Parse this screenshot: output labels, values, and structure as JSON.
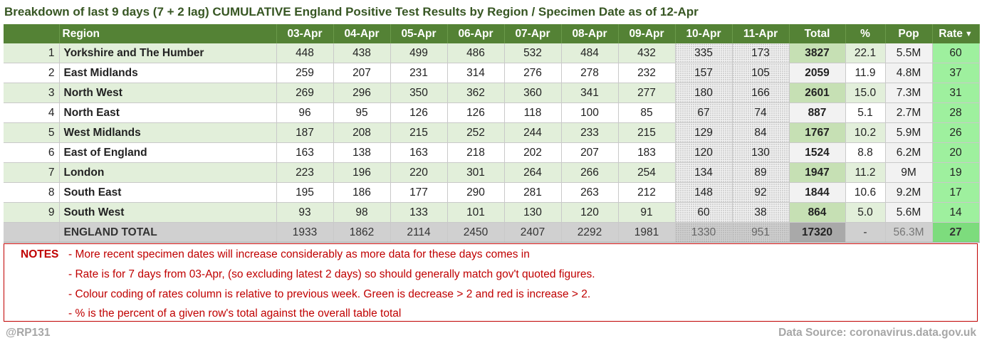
{
  "title": "Breakdown of last 9 days (7 + 2 lag) CUMULATIVE England Positive Test Results by Region / Specimen Date as of 12-Apr",
  "header": {
    "region": "Region",
    "days": [
      "03-Apr",
      "04-Apr",
      "05-Apr",
      "06-Apr",
      "07-Apr",
      "08-Apr",
      "09-Apr"
    ],
    "lag_days": [
      "10-Apr",
      "11-Apr"
    ],
    "total": "Total",
    "pct": "%",
    "pop": "Pop",
    "rate": "Rate",
    "rate_sort_icon": "▼"
  },
  "rows": [
    {
      "idx": "1",
      "region": "Yorkshire and The Humber",
      "days": [
        "448",
        "438",
        "499",
        "486",
        "532",
        "484",
        "432"
      ],
      "lag": [
        "335",
        "173"
      ],
      "total": "3827",
      "pct": "22.1",
      "pop": "5.5M",
      "rate": "60"
    },
    {
      "idx": "2",
      "region": "East Midlands",
      "days": [
        "259",
        "207",
        "231",
        "314",
        "276",
        "278",
        "232"
      ],
      "lag": [
        "157",
        "105"
      ],
      "total": "2059",
      "pct": "11.9",
      "pop": "4.8M",
      "rate": "37"
    },
    {
      "idx": "3",
      "region": "North West",
      "days": [
        "269",
        "296",
        "350",
        "362",
        "360",
        "341",
        "277"
      ],
      "lag": [
        "180",
        "166"
      ],
      "total": "2601",
      "pct": "15.0",
      "pop": "7.3M",
      "rate": "31"
    },
    {
      "idx": "4",
      "region": "North East",
      "days": [
        "96",
        "95",
        "126",
        "126",
        "118",
        "100",
        "85"
      ],
      "lag": [
        "67",
        "74"
      ],
      "total": "887",
      "pct": "5.1",
      "pop": "2.7M",
      "rate": "28"
    },
    {
      "idx": "5",
      "region": "West Midlands",
      "days": [
        "187",
        "208",
        "215",
        "252",
        "244",
        "233",
        "215"
      ],
      "lag": [
        "129",
        "84"
      ],
      "total": "1767",
      "pct": "10.2",
      "pop": "5.9M",
      "rate": "26"
    },
    {
      "idx": "6",
      "region": "East of England",
      "days": [
        "163",
        "138",
        "163",
        "218",
        "202",
        "207",
        "183"
      ],
      "lag": [
        "120",
        "130"
      ],
      "total": "1524",
      "pct": "8.8",
      "pop": "6.2M",
      "rate": "20"
    },
    {
      "idx": "7",
      "region": "London",
      "days": [
        "223",
        "196",
        "220",
        "301",
        "264",
        "266",
        "254"
      ],
      "lag": [
        "134",
        "89"
      ],
      "total": "1947",
      "pct": "11.2",
      "pop": "9M",
      "rate": "19"
    },
    {
      "idx": "8",
      "region": "South East",
      "days": [
        "195",
        "186",
        "177",
        "290",
        "281",
        "263",
        "212"
      ],
      "lag": [
        "148",
        "92"
      ],
      "total": "1844",
      "pct": "10.6",
      "pop": "9.2M",
      "rate": "17"
    },
    {
      "idx": "9",
      "region": "South West",
      "days": [
        "93",
        "98",
        "133",
        "101",
        "130",
        "120",
        "91"
      ],
      "lag": [
        "60",
        "38"
      ],
      "total": "864",
      "pct": "5.0",
      "pop": "5.6M",
      "rate": "14"
    }
  ],
  "england_total": {
    "region": "ENGLAND TOTAL",
    "days": [
      "1933",
      "1862",
      "2114",
      "2450",
      "2407",
      "2292",
      "1981"
    ],
    "lag": [
      "1330",
      "951"
    ],
    "total": "17320",
    "pct": "-",
    "pop": "56.3M",
    "rate": "27"
  },
  "notes": {
    "label": "NOTES",
    "lines": [
      "- More recent specimen dates will increase considerably as more data for these days comes in",
      "- Rate is for 7 days from 03-Apr, (so excluding latest 2 days) so should generally match gov't quoted figures.",
      "- Colour coding of rates column is relative to previous week. Green is decrease > 2 and red is increase > 2.",
      "- % is the percent of a given row's total against the overall table total"
    ]
  },
  "footer": {
    "handle": "@RP131",
    "source": "Data Source: coronavirus.data.gov.uk"
  },
  "colors": {
    "title": "#375623",
    "header_bg": "#548235",
    "row_even_bg": "#e2efda",
    "total_even_bg": "#c6e0b4",
    "rate_decrease_green": "#9ef09e",
    "notes_red": "#c00000",
    "footer_grey": "#a6a6a6"
  }
}
